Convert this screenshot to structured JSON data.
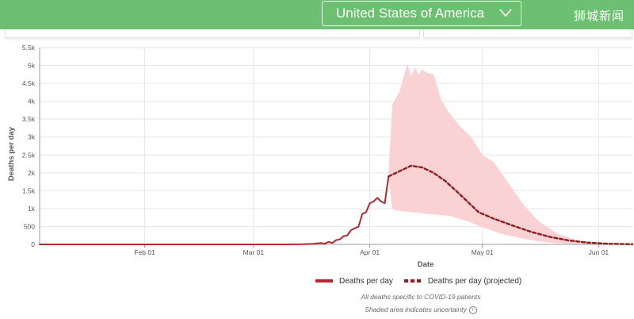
{
  "header": {
    "country": "United States of America",
    "watermark": "狮城新闻",
    "accent": "#6dbf71"
  },
  "chart_data": {
    "type": "line",
    "xlabel": "Date",
    "ylabel": "Deaths per day",
    "x_ticks": [
      "Feb 01",
      "Mar 01",
      "Apr 01",
      "May 01",
      "Jun 01"
    ],
    "y_ticks": [
      "0",
      "500",
      "1k",
      "1.5k",
      "2k",
      "2.5k",
      "3k",
      "3.5k",
      "4k",
      "4.5k",
      "5k",
      "5.5k"
    ],
    "xlim": [
      "2020-01-04",
      "2020-06-10"
    ],
    "ylim": [
      0,
      5500
    ],
    "grid": true,
    "series": [
      {
        "name": "Deaths per day",
        "style": "solid",
        "color": "#b22a2f",
        "points": [
          [
            "2020-01-04",
            0
          ],
          [
            "2020-02-01",
            0
          ],
          [
            "2020-03-01",
            0
          ],
          [
            "2020-03-10",
            0
          ],
          [
            "2020-03-14",
            5
          ],
          [
            "2020-03-17",
            15
          ],
          [
            "2020-03-19",
            40
          ],
          [
            "2020-03-20",
            20
          ],
          [
            "2020-03-21",
            70
          ],
          [
            "2020-03-22",
            40
          ],
          [
            "2020-03-23",
            120
          ],
          [
            "2020-03-24",
            140
          ],
          [
            "2020-03-25",
            230
          ],
          [
            "2020-03-26",
            250
          ],
          [
            "2020-03-27",
            400
          ],
          [
            "2020-03-28",
            450
          ],
          [
            "2020-03-29",
            500
          ],
          [
            "2020-03-30",
            850
          ],
          [
            "2020-03-31",
            900
          ],
          [
            "2020-04-01",
            1150
          ],
          [
            "2020-04-02",
            1200
          ],
          [
            "2020-04-03",
            1300
          ],
          [
            "2020-04-04",
            1200
          ],
          [
            "2020-04-05",
            1150
          ],
          [
            "2020-04-06",
            1900
          ]
        ]
      },
      {
        "name": "Deaths per day (projected)",
        "style": "dashed",
        "color": "#8e1b20",
        "points": [
          [
            "2020-04-06",
            1900
          ],
          [
            "2020-04-09",
            2050
          ],
          [
            "2020-04-12",
            2200
          ],
          [
            "2020-04-15",
            2150
          ],
          [
            "2020-04-18",
            2000
          ],
          [
            "2020-04-21",
            1780
          ],
          [
            "2020-04-24",
            1500
          ],
          [
            "2020-04-27",
            1200
          ],
          [
            "2020-04-30",
            900
          ],
          [
            "2020-05-04",
            720
          ],
          [
            "2020-05-09",
            530
          ],
          [
            "2020-05-14",
            350
          ],
          [
            "2020-05-19",
            210
          ],
          [
            "2020-05-24",
            110
          ],
          [
            "2020-05-29",
            50
          ],
          [
            "2020-06-03",
            20
          ],
          [
            "2020-06-10",
            5
          ]
        ]
      }
    ],
    "uncertainty": {
      "color": "#fbd2d3",
      "upper": [
        [
          "2020-04-06",
          2000
        ],
        [
          "2020-04-07",
          3900
        ],
        [
          "2020-04-09",
          4300
        ],
        [
          "2020-04-11",
          5050
        ],
        [
          "2020-04-12",
          4700
        ],
        [
          "2020-04-13",
          4950
        ],
        [
          "2020-04-14",
          4750
        ],
        [
          "2020-04-15",
          4900
        ],
        [
          "2020-04-16",
          4800
        ],
        [
          "2020-04-18",
          4750
        ],
        [
          "2020-04-20",
          4050
        ],
        [
          "2020-04-22",
          3700
        ],
        [
          "2020-04-25",
          3300
        ],
        [
          "2020-04-28",
          3000
        ],
        [
          "2020-05-01",
          2500
        ],
        [
          "2020-05-04",
          2300
        ],
        [
          "2020-05-08",
          1700
        ],
        [
          "2020-05-12",
          1100
        ],
        [
          "2020-05-16",
          650
        ],
        [
          "2020-05-21",
          300
        ],
        [
          "2020-05-26",
          120
        ],
        [
          "2020-06-01",
          40
        ],
        [
          "2020-06-10",
          10
        ]
      ],
      "lower": [
        [
          "2020-06-10",
          0
        ],
        [
          "2020-06-01",
          5
        ],
        [
          "2020-05-26",
          15
        ],
        [
          "2020-05-21",
          30
        ],
        [
          "2020-05-16",
          80
        ],
        [
          "2020-05-11",
          180
        ],
        [
          "2020-05-06",
          300
        ],
        [
          "2020-05-01",
          480
        ],
        [
          "2020-04-27",
          650
        ],
        [
          "2020-04-22",
          800
        ],
        [
          "2020-04-17",
          850
        ],
        [
          "2020-04-12",
          900
        ],
        [
          "2020-04-08",
          950
        ],
        [
          "2020-04-07",
          1000
        ],
        [
          "2020-04-06",
          1800
        ]
      ]
    },
    "legend": {
      "placement": "bottom",
      "entries": [
        "Deaths per day",
        "Deaths per day (projected)"
      ]
    },
    "notes": [
      "All deaths specific to COVID-19 patients",
      "Shaded area indicates uncertainty"
    ]
  }
}
